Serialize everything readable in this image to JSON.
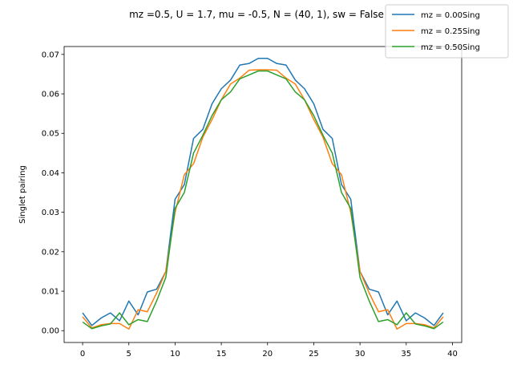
{
  "chart_data": {
    "type": "line",
    "title": "mz =0.5, U = 1.7, mu = -0.5, N = (40, 1), sw = False",
    "xlabel": "",
    "ylabel": "Singlet pairing",
    "xlim": [
      -2,
      41
    ],
    "ylim": [
      -0.003,
      0.072
    ],
    "xticks": [
      0,
      5,
      10,
      15,
      20,
      25,
      30,
      35,
      40
    ],
    "yticks": [
      0.0,
      0.01,
      0.02,
      0.03,
      0.04,
      0.05,
      0.06,
      0.07
    ],
    "ytick_labels": [
      "0.00",
      "0.01",
      "0.02",
      "0.03",
      "0.04",
      "0.05",
      "0.06",
      "0.07"
    ],
    "grid": false,
    "legend_position": "top-right",
    "x": [
      0,
      1,
      2,
      3,
      4,
      5,
      6,
      7,
      8,
      9,
      10,
      11,
      12,
      13,
      14,
      15,
      16,
      17,
      18,
      19,
      20,
      21,
      22,
      23,
      24,
      25,
      26,
      27,
      28,
      29,
      30,
      31,
      32,
      33,
      34,
      35,
      36,
      37,
      38,
      39
    ],
    "series": [
      {
        "name": "mz = 0.00Sing",
        "color": "#1f77b4",
        "values": [
          0.0045,
          0.0013,
          0.0032,
          0.0045,
          0.0025,
          0.0075,
          0.004,
          0.0098,
          0.0105,
          0.015,
          0.0333,
          0.037,
          0.0487,
          0.051,
          0.0575,
          0.0613,
          0.0635,
          0.0673,
          0.0677,
          0.069,
          0.069,
          0.0677,
          0.0673,
          0.0635,
          0.0613,
          0.0575,
          0.051,
          0.0487,
          0.037,
          0.0333,
          0.015,
          0.0105,
          0.0098,
          0.004,
          0.0075,
          0.0025,
          0.0045,
          0.0032,
          0.0013,
          0.0045
        ]
      },
      {
        "name": "mz = 0.25Sing",
        "color": "#ff7f0e",
        "values": [
          0.0035,
          0.0007,
          0.0015,
          0.0018,
          0.0018,
          0.0004,
          0.0053,
          0.0048,
          0.0095,
          0.015,
          0.03,
          0.0395,
          0.0423,
          0.049,
          0.0535,
          0.0585,
          0.0625,
          0.064,
          0.066,
          0.0661,
          0.0661,
          0.066,
          0.064,
          0.0625,
          0.0585,
          0.0535,
          0.049,
          0.0423,
          0.0395,
          0.03,
          0.015,
          0.0095,
          0.0048,
          0.0053,
          0.0004,
          0.0018,
          0.0018,
          0.0015,
          0.0007,
          0.0035
        ]
      },
      {
        "name": "mz = 0.50Sing",
        "color": "#2ca02c",
        "values": [
          0.0022,
          0.0005,
          0.0012,
          0.0017,
          0.0045,
          0.0015,
          0.0028,
          0.0023,
          0.0075,
          0.0135,
          0.031,
          0.035,
          0.045,
          0.0495,
          0.0545,
          0.0585,
          0.0605,
          0.0638,
          0.0648,
          0.0658,
          0.0658,
          0.0648,
          0.0638,
          0.0605,
          0.0585,
          0.0545,
          0.0495,
          0.045,
          0.035,
          0.031,
          0.0135,
          0.0075,
          0.0023,
          0.0028,
          0.0015,
          0.0045,
          0.0017,
          0.0012,
          0.0005,
          0.0022
        ]
      }
    ]
  }
}
